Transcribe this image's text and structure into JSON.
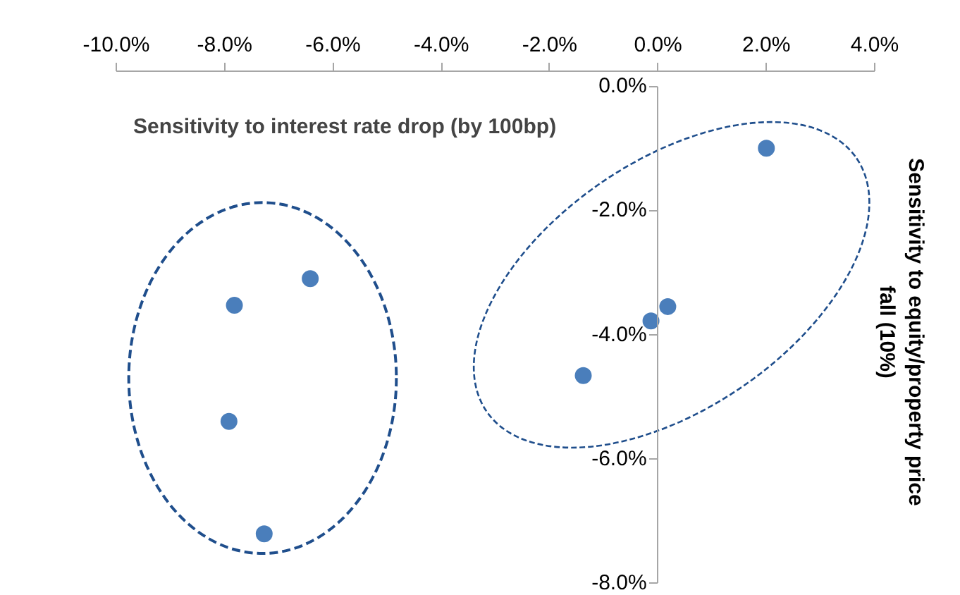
{
  "chart_data": {
    "type": "scatter",
    "xlabel": "Sensitivity to interest rate drop (by 100bp)",
    "ylabel": "Sensitivity to equity/property price fall (10%)",
    "x": [
      2.0,
      0.18,
      -0.13,
      -1.38,
      -6.42,
      -7.82,
      -7.92,
      -7.27
    ],
    "series": [
      {
        "color": "#4a7ebb",
        "values": [
          -1.0,
          -3.55,
          -3.78,
          -4.66,
          -3.1,
          -3.53,
          -5.4,
          -7.21
        ]
      }
    ],
    "xlim": [
      -10,
      4
    ],
    "ylim": [
      -8,
      0
    ],
    "xticks": [
      {
        "value": -10,
        "label": "-10.0%"
      },
      {
        "value": -8,
        "label": "-8.0%"
      },
      {
        "value": -6,
        "label": "-6.0%"
      },
      {
        "value": -4,
        "label": "-4.0%"
      },
      {
        "value": -2,
        "label": "-2.0%"
      },
      {
        "value": 0,
        "label": "0.0%"
      },
      {
        "value": 2,
        "label": "2.0%"
      },
      {
        "value": 4,
        "label": "4.0%"
      }
    ],
    "yticks": [
      {
        "value": 0,
        "label": "0.0%"
      },
      {
        "value": -2,
        "label": "-2.0%"
      },
      {
        "value": -4,
        "label": "-4.0%"
      },
      {
        "value": -6,
        "label": "-6.0%"
      },
      {
        "value": -8,
        "label": "-8.0%"
      }
    ],
    "marker": "circle"
  }
}
